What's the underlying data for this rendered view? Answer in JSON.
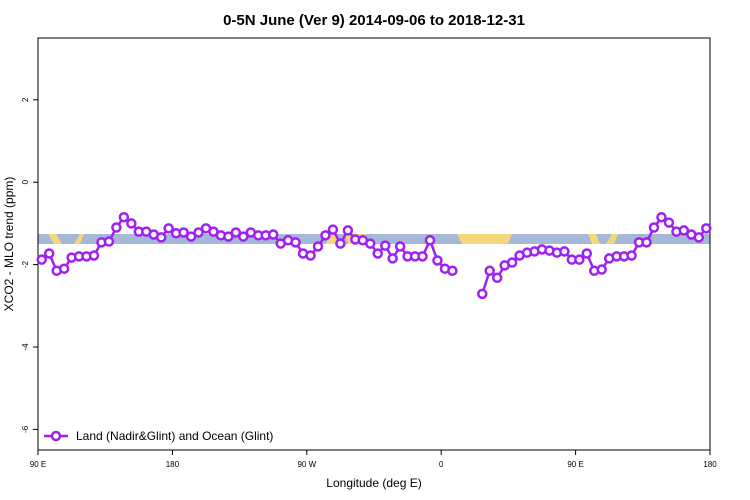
{
  "chart_data": {
    "type": "line",
    "title": "0-5N June (Ver 9)   2014-09-06 to 2018-12-31",
    "x_label": "Longitude (deg E)",
    "y_label": "XCO2 - MLO trend (ppm)",
    "xlim": [
      90,
      540
    ],
    "xticks": [
      {
        "value": 90,
        "label": "90 E"
      },
      180,
      {
        "value": 270,
        "label": "90 W"
      },
      {
        "value": 360,
        "label": "0"
      },
      {
        "value": 450,
        "label": "90 E"
      },
      {
        "value": 540,
        "label": "180"
      }
    ],
    "ylim": [
      -6.5,
      3.5
    ],
    "yticks": [
      -6,
      -4,
      -2,
      0,
      2
    ],
    "legend": "bottom-left",
    "x": [
      92.5,
      97.5,
      102.5,
      107.5,
      112.5,
      117.5,
      122.5,
      127.5,
      132.5,
      137.5,
      142.5,
      147.5,
      152.5,
      157.5,
      162.5,
      167.5,
      172.5,
      177.5,
      182.5,
      187.5,
      192.5,
      197.5,
      202.5,
      207.5,
      212.5,
      217.5,
      222.5,
      227.5,
      232.5,
      237.5,
      242.5,
      247.5,
      252.5,
      257.5,
      262.5,
      267.5,
      272.5,
      277.5,
      282.5,
      287.5,
      292.5,
      297.5,
      302.5,
      307.5,
      312.5,
      317.5,
      322.5,
      327.5,
      332.5,
      337.5,
      342.5,
      347.5,
      352.5,
      357.5,
      362.5,
      367.5,
      372.5,
      377.5,
      382.5,
      387.5,
      392.5,
      397.5,
      402.5,
      407.5,
      412.5,
      417.5,
      422.5,
      427.5,
      432.5,
      437.5,
      442.5,
      447.5,
      452.5,
      457.5,
      462.5,
      467.5,
      472.5,
      477.5,
      482.5,
      487.5,
      492.5,
      497.5,
      502.5,
      507.5,
      512.5,
      517.5,
      522.5,
      527.5,
      532.5,
      537.5
    ],
    "series": [
      {
        "name": "Land (Nadir&Glint) and Ocean (Glint)",
        "color": "#a020f0",
        "values": [
          -1.88,
          -1.73,
          -2.15,
          -2.1,
          -1.83,
          -1.8,
          -1.8,
          -1.78,
          -1.46,
          -1.44,
          -1.1,
          -0.85,
          -1.0,
          -1.2,
          -1.2,
          -1.27,
          -1.34,
          -1.12,
          -1.24,
          -1.22,
          -1.32,
          -1.22,
          -1.12,
          -1.2,
          -1.29,
          -1.32,
          -1.22,
          -1.32,
          -1.22,
          -1.29,
          -1.29,
          -1.27,
          -1.49,
          -1.41,
          -1.46,
          -1.73,
          -1.78,
          -1.56,
          -1.29,
          -1.15,
          -1.49,
          -1.17,
          -1.39,
          -1.41,
          -1.49,
          -1.73,
          -1.54,
          -1.85,
          -1.56,
          -1.8,
          -1.8,
          -1.8,
          -1.41,
          -1.9,
          -2.1,
          -2.15,
          null,
          null,
          null,
          -2.71,
          -2.15,
          -2.32,
          -2.02,
          -1.95,
          -1.78,
          -1.71,
          -1.68,
          -1.63,
          -1.66,
          -1.71,
          -1.68,
          -1.88,
          -1.88,
          -1.73,
          -2.15,
          -2.12,
          -1.85,
          -1.8,
          -1.8,
          -1.78,
          -1.46,
          -1.46,
          -1.1,
          -0.85,
          -0.98,
          -1.2,
          -1.17,
          -1.27,
          -1.34,
          -1.12
        ]
      }
    ]
  }
}
